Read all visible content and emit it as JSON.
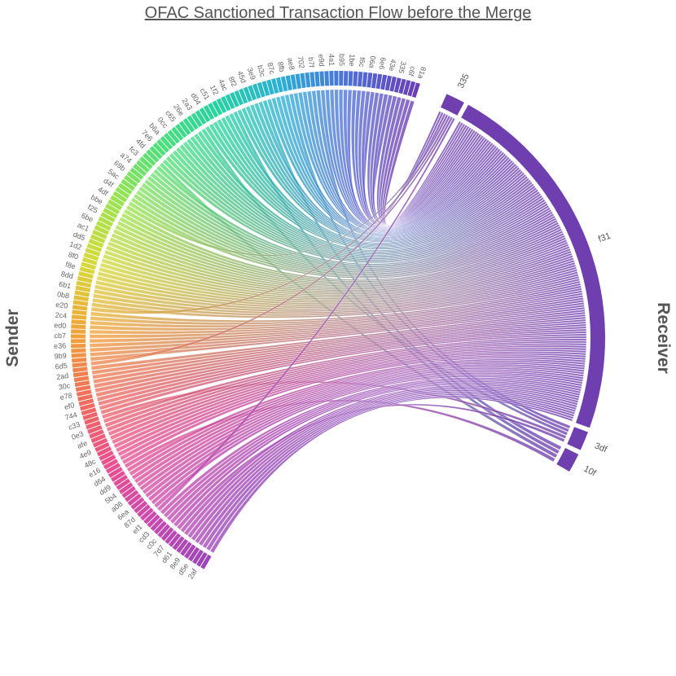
{
  "chart_data": {
    "type": "chord",
    "title": "OFAC Sanctioned Transaction Flow before the Merge",
    "left_label": "Sender",
    "right_label": "Receiver",
    "receivers": [
      {
        "name": "335",
        "share": 0.045,
        "color": "#6f3fb0"
      },
      {
        "name": "f31",
        "share": 0.865,
        "color": "#6f3fb0"
      },
      {
        "name": "3df",
        "share": 0.045,
        "color": "#6f3fb0"
      },
      {
        "name": "10f",
        "share": 0.045,
        "color": "#6f3fb0"
      }
    ],
    "sender_count": 160,
    "sender_tick_labels": [
      "81a",
      "c6f",
      "335",
      "43e",
      "6e6",
      "06a",
      "f6c",
      "1be",
      "b95",
      "4a1",
      "e9d",
      "b7f",
      "702",
      "ae8",
      "8fb",
      "87c",
      "b3c",
      "3e9",
      "45d",
      "8f2",
      "4ac",
      "1f2",
      "c51",
      "d04",
      "2a3",
      "26e",
      "c65",
      "0cc",
      "b6a",
      "7e6",
      "4fd",
      "fc3",
      "a74",
      "69b",
      "5ac",
      "d4f",
      "4df",
      "bbe",
      "f25",
      "6be",
      "ac1",
      "dd5",
      "1d2",
      "8f0",
      "f8e",
      "8dd",
      "6b1",
      "0b8",
      "e20",
      "2c4",
      "ed0",
      "cb7",
      "e36",
      "9b9",
      "6d5",
      "2ad",
      "30c",
      "e78",
      "ef0",
      "744",
      "c33",
      "0e3",
      "afe",
      "4e9",
      "48c",
      "e16",
      "d64",
      "dd9",
      "5b4",
      "a08",
      "6ea",
      "87d",
      "ef1",
      "cd3",
      "c0c",
      "7d7",
      "d61",
      "8e9",
      "d5e",
      "2af"
    ],
    "sender_color_stops": [
      "#6a3fb5",
      "#4d6fd8",
      "#2ab0d6",
      "#27d3a0",
      "#4fe07a",
      "#9be34f",
      "#d7d93a",
      "#f2a33a",
      "#ef6c5c",
      "#ea4f8f",
      "#c94ab0",
      "#9c45b8"
    ]
  }
}
